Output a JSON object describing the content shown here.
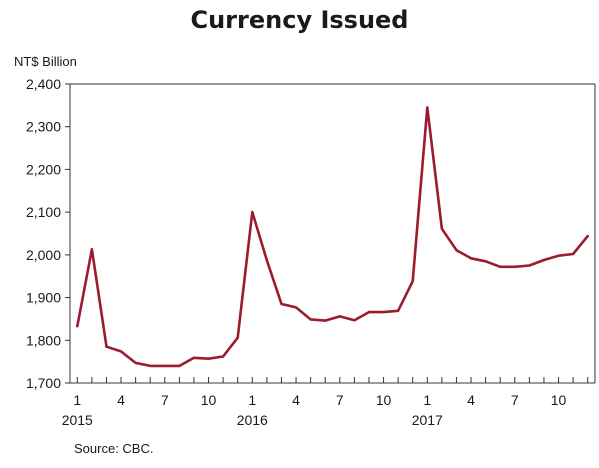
{
  "title": "Currency Issued",
  "unit_label": "NT$ Billion",
  "source": "Source: CBC.",
  "colors": {
    "line": "#9b1c2e",
    "axis": "#333333",
    "text": "#1a1a1a",
    "background": "#ffffff"
  },
  "chart_data": {
    "type": "line",
    "title": "Currency Issued",
    "ylabel": "NT$ Billion",
    "xlabel": "",
    "ylim": [
      1700,
      2400
    ],
    "y_ticks": [
      "1,700",
      "1,800",
      "1,900",
      "2,000",
      "2,100",
      "2,200",
      "2,300",
      "2,400"
    ],
    "x_tick_labels": [
      {
        "index": 0,
        "label": "1"
      },
      {
        "index": 3,
        "label": "4"
      },
      {
        "index": 6,
        "label": "7"
      },
      {
        "index": 9,
        "label": "10"
      },
      {
        "index": 12,
        "label": "1"
      },
      {
        "index": 15,
        "label": "4"
      },
      {
        "index": 18,
        "label": "7"
      },
      {
        "index": 21,
        "label": "10"
      },
      {
        "index": 24,
        "label": "1"
      },
      {
        "index": 27,
        "label": "4"
      },
      {
        "index": 30,
        "label": "7"
      },
      {
        "index": 33,
        "label": "10"
      }
    ],
    "year_labels": [
      {
        "index": 0,
        "label": "2015"
      },
      {
        "index": 12,
        "label": "2016"
      },
      {
        "index": 24,
        "label": "2017"
      }
    ],
    "x": [
      "2015-01",
      "2015-02",
      "2015-03",
      "2015-04",
      "2015-05",
      "2015-06",
      "2015-07",
      "2015-08",
      "2015-09",
      "2015-10",
      "2015-11",
      "2015-12",
      "2016-01",
      "2016-02",
      "2016-03",
      "2016-04",
      "2016-05",
      "2016-06",
      "2016-07",
      "2016-08",
      "2016-09",
      "2016-10",
      "2016-11",
      "2016-12",
      "2017-01",
      "2017-02",
      "2017-03",
      "2017-04",
      "2017-05",
      "2017-06",
      "2017-07",
      "2017-08",
      "2017-09",
      "2017-10",
      "2017-11",
      "2017-12"
    ],
    "series": [
      {
        "values": [
          1833,
          2013,
          1785,
          1774,
          1747,
          1740,
          1740,
          1740,
          1759,
          1757,
          1762,
          1806,
          2100,
          1987,
          1885,
          1877,
          1849,
          1846,
          1856,
          1847,
          1866,
          1866,
          1869,
          1938,
          2345,
          2061,
          2011,
          1992,
          1985,
          1972,
          1972,
          1975,
          1988,
          1998,
          2002,
          2044
        ]
      }
    ],
    "grid": true,
    "legend": "none"
  }
}
